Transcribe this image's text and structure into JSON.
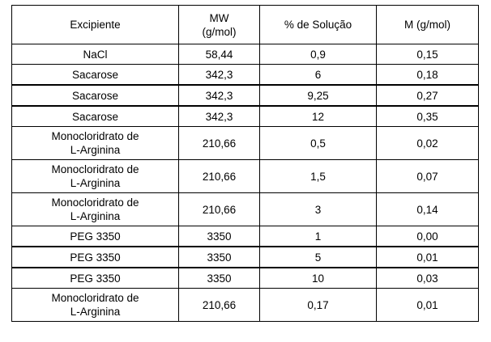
{
  "table": {
    "headers": [
      "Excipiente",
      "MW\n(g/mol)",
      "% de Solução",
      "M (g/mol)"
    ],
    "rows": [
      {
        "excipiente": "NaCl",
        "mw": "58,44",
        "solucao": "0,9",
        "m": "0,15"
      },
      {
        "excipiente": "Sacarose",
        "mw": "342,3",
        "solucao": "6",
        "m": "0,18"
      },
      {
        "excipiente": "Sacarose",
        "mw": "342,3",
        "solucao": "9,25",
        "m": "0,27"
      },
      {
        "excipiente": "Sacarose",
        "mw": "342,3",
        "solucao": "12",
        "m": "0,35"
      },
      {
        "excipiente": "Monocloridrato de\nL-Arginina",
        "mw": "210,66",
        "solucao": "0,5",
        "m": "0,02"
      },
      {
        "excipiente": "Monocloridrato de\nL-Arginina",
        "mw": "210,66",
        "solucao": "1,5",
        "m": "0,07"
      },
      {
        "excipiente": "Monocloridrato de\nL-Arginina",
        "mw": "210,66",
        "solucao": "3",
        "m": "0,14"
      },
      {
        "excipiente": "PEG 3350",
        "mw": "3350",
        "solucao": "1",
        "m": "0,00"
      },
      {
        "excipiente": "PEG 3350",
        "mw": "3350",
        "solucao": "5",
        "m": "0,01"
      },
      {
        "excipiente": "PEG 3350",
        "mw": "3350",
        "solucao": "10",
        "m": "0,03"
      },
      {
        "excipiente": "Monocloridrato de\nL-Arginina",
        "mw": "210,66",
        "solucao": "0,17",
        "m": "0,01"
      }
    ]
  }
}
